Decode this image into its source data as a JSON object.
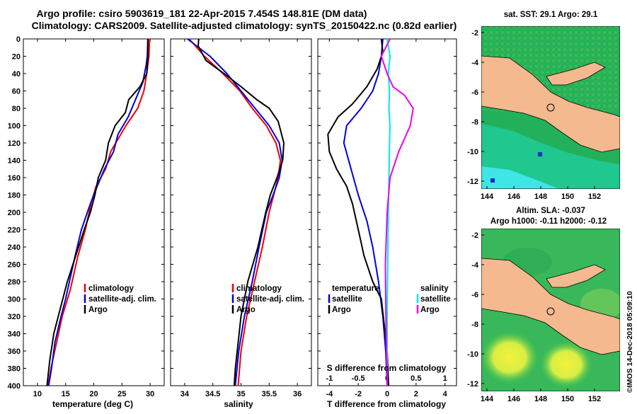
{
  "header": {
    "line1": "Argo profile: csiro 5903619_181 22-Apr-2015 7.454S 148.81E (DM data)",
    "line2": "Climatology: CARS2009. Satellite-adjusted climatology: synTS_20150422.nc (0.82d earlier)"
  },
  "depth_ticks": [
    0,
    20,
    40,
    60,
    80,
    100,
    120,
    140,
    160,
    180,
    200,
    220,
    240,
    260,
    280,
    300,
    320,
    340,
    360,
    380,
    400
  ],
  "chart_data": [
    {
      "type": "line",
      "id": "temperature",
      "xlabel": "temperature (deg C)",
      "ylabel": "depth",
      "xlim": [
        7.5,
        32.5
      ],
      "ylim": [
        400,
        0
      ],
      "xticks": [
        10,
        15,
        20,
        25,
        30
      ],
      "legend": [
        "climatology",
        "satellite-adj. clim.",
        "Argo"
      ],
      "series": [
        {
          "name": "climatology",
          "color": "#ee0000",
          "x": [
            29.9,
            29.8,
            29.4,
            28.9,
            27.8,
            25.7,
            23.0,
            22.1,
            20.4,
            19.5,
            18.5,
            17.2,
            15.8,
            14.4,
            13.4,
            12.4,
            11.9
          ],
          "y": [
            0,
            20,
            40,
            60,
            80,
            100,
            130,
            150,
            170,
            190,
            220,
            250,
            290,
            320,
            350,
            380,
            400
          ]
        },
        {
          "name": "satellite-adj. clim.",
          "color": "#0000dd",
          "x": [
            29.6,
            29.5,
            29.3,
            28.7,
            27.4,
            26.1,
            24.3,
            23.5,
            21.9,
            20.6,
            19.4,
            17.8,
            16.7,
            15.0,
            14.2,
            13.1,
            12.5,
            12.0
          ],
          "y": [
            0,
            20,
            30,
            50,
            70,
            90,
            110,
            130,
            150,
            170,
            190,
            220,
            250,
            300,
            320,
            350,
            380,
            400
          ]
        },
        {
          "name": "Argo",
          "color": "#000000",
          "x": [
            29.6,
            29.6,
            29.4,
            28.2,
            26.2,
            25.6,
            23.8,
            22.6,
            22.1,
            20.8,
            20.2,
            19.4,
            18.3,
            16.8,
            15.3,
            14.1,
            12.9,
            12.2,
            11.7
          ],
          "y": [
            0,
            20,
            40,
            55,
            70,
            85,
            100,
            120,
            140,
            160,
            180,
            200,
            220,
            250,
            280,
            310,
            340,
            370,
            400
          ]
        }
      ]
    },
    {
      "type": "line",
      "id": "salinity",
      "xlabel": "salinity",
      "ylabel": "depth",
      "xlim": [
        33.75,
        36.25
      ],
      "ylim": [
        400,
        0
      ],
      "xticks": [
        34,
        34.5,
        35,
        35.5,
        36
      ],
      "xtick_labels": [
        "34",
        "34.5",
        "35",
        "35.5",
        "36"
      ],
      "legend": [
        "climatology",
        "satellite-adj. clim.",
        "Argo"
      ],
      "series": [
        {
          "name": "climatology",
          "color": "#ee0000",
          "x": [
            34.08,
            34.35,
            34.68,
            34.98,
            35.2,
            35.45,
            35.62,
            35.7,
            35.66,
            35.58,
            35.5,
            35.38,
            35.24,
            35.1,
            35.0,
            34.95
          ],
          "y": [
            0,
            20,
            40,
            60,
            80,
            100,
            120,
            140,
            160,
            180,
            200,
            240,
            280,
            320,
            360,
            400
          ]
        },
        {
          "name": "satellite-adj. clim.",
          "color": "#0000dd",
          "x": [
            34.05,
            34.45,
            34.75,
            35.0,
            35.25,
            35.5,
            35.68,
            35.73,
            35.68,
            35.57,
            35.45,
            35.32,
            35.2,
            35.06,
            34.96,
            34.9
          ],
          "y": [
            0,
            20,
            40,
            60,
            80,
            100,
            120,
            140,
            160,
            180,
            200,
            240,
            280,
            320,
            360,
            400
          ]
        },
        {
          "name": "Argo",
          "color": "#000000",
          "x": [
            34.25,
            34.24,
            34.38,
            34.7,
            35.0,
            35.28,
            35.5,
            35.66,
            35.76,
            35.74,
            35.64,
            35.52,
            35.44,
            35.3,
            35.12,
            35.0,
            34.95,
            34.9,
            34.88
          ],
          "y": [
            0,
            8,
            25,
            40,
            55,
            70,
            80,
            95,
            120,
            140,
            160,
            180,
            200,
            240,
            280,
            320,
            350,
            380,
            400
          ]
        }
      ]
    },
    {
      "type": "line",
      "id": "difference",
      "xlabel": "T difference from climatology",
      "x2label": "S difference from climatology",
      "ylabel": "depth",
      "xlim": [
        -4.8,
        4.8
      ],
      "ylim": [
        400,
        0
      ],
      "xticks": [
        -4,
        -2,
        0,
        2,
        4
      ],
      "x2lim": [
        -1.2,
        1.2
      ],
      "x2ticks": [
        -1,
        -0.5,
        0,
        0.5,
        1
      ],
      "x2tick_labels": [
        "-1",
        "-0.5",
        "0",
        "0.5",
        "1"
      ],
      "legend_left": {
        "heading": "temperature",
        "items": [
          "satellite",
          "Argo"
        ]
      },
      "legend_right": {
        "heading": "salinity",
        "items": [
          "satellite",
          "Argo"
        ]
      },
      "series": [
        {
          "name": "temperature satellite",
          "axis": "T",
          "color": "#0000dd",
          "x": [
            -0.3,
            -0.4,
            -0.6,
            -1.0,
            -1.8,
            -2.8,
            -3.0,
            -2.5,
            -2.0,
            -1.4,
            -1.0,
            -0.6,
            -0.3,
            -0.1,
            0.0
          ],
          "y": [
            0,
            20,
            40,
            60,
            80,
            100,
            120,
            150,
            180,
            210,
            240,
            280,
            320,
            360,
            400
          ]
        },
        {
          "name": "temperature Argo",
          "axis": "T",
          "color": "#000000",
          "x": [
            -0.4,
            -0.3,
            -0.7,
            -1.4,
            -2.4,
            -3.4,
            -4.1,
            -4.0,
            -3.5,
            -2.8,
            -2.4,
            -2.0,
            -1.6,
            -1.0,
            -0.4,
            -0.2,
            0.0,
            0.1
          ],
          "y": [
            0,
            15,
            35,
            55,
            75,
            90,
            110,
            130,
            150,
            170,
            190,
            220,
            250,
            280,
            300,
            330,
            360,
            400
          ]
        },
        {
          "name": "salinity satellite",
          "axis": "S",
          "color": "#00e5ee",
          "x": [
            0.0,
            0.05,
            0.02,
            0.04,
            0.03,
            0.05,
            0.04,
            0.03,
            0.02,
            0.01,
            0.0,
            0.0
          ],
          "y": [
            0,
            20,
            40,
            60,
            80,
            100,
            120,
            160,
            200,
            260,
            320,
            400
          ]
        },
        {
          "name": "salinity Argo",
          "axis": "S",
          "color": "#ee00ee",
          "x": [
            0.05,
            -0.1,
            0.0,
            0.1,
            0.3,
            0.45,
            0.4,
            0.2,
            0.05,
            0.0,
            -0.03,
            -0.02,
            0.0
          ],
          "y": [
            0,
            20,
            40,
            55,
            65,
            80,
            100,
            130,
            160,
            200,
            260,
            330,
            400
          ]
        }
      ]
    }
  ],
  "maps": [
    {
      "title": "sat. SST: 29.1 Argo: 29.1",
      "title2": "",
      "xticks": [
        "144",
        "146",
        "148",
        "150",
        "152"
      ],
      "yticks": [
        "-2",
        "-4",
        "-6",
        "-8",
        "-10",
        "-12"
      ]
    },
    {
      "title": "Altim. SLA: -0.037",
      "title2": "Argo h1000: -0.11 h2000: -0.12",
      "xticks": [
        "144",
        "146",
        "148",
        "150",
        "152"
      ],
      "yticks": [
        "-2",
        "-4",
        "-6",
        "-8",
        "-10",
        "-12"
      ]
    }
  ],
  "footer": {
    "watermark": "©IMOS 14-Dec-2018 05:09:10"
  }
}
